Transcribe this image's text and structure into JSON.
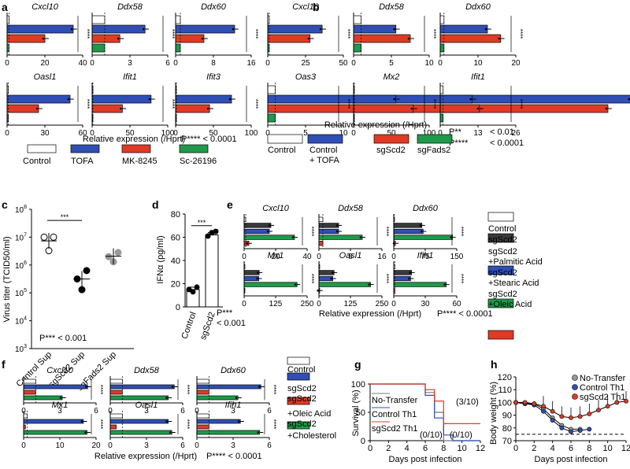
{
  "colors": {
    "control": "#ffffff",
    "tofa": "#2f4fb5",
    "mk": "#e03a25",
    "sc": "#1f9a4a",
    "dark": "#3a3a3a",
    "blue": "#2f4fb5",
    "red": "#e03a25",
    "green": "#1f9a4a",
    "grey": "#777777"
  },
  "panel_labels": {
    "a": "a",
    "b": "b",
    "c": "c",
    "d": "d",
    "e": "e",
    "f": "f",
    "g": "g",
    "h": "h"
  },
  "common": {
    "xlabel": "Relative expression (/Hprt)",
    "sig": "****",
    "sig_double": "**",
    "sig_triple": "***"
  },
  "legends": {
    "a": {
      "items": [
        "Control",
        "TOFA",
        "MK-8245",
        "Sc-26196"
      ],
      "p": "P**** < 0.0001"
    },
    "b": {
      "items": [
        "Control",
        "Control",
        "+ TOFA",
        "sgScd2",
        "sgFads2"
      ],
      "p1": "P**",
      "p1v": "< 0.01",
      "p2": "P****",
      "p2v": "< 0.0001"
    },
    "e": {
      "items": [
        "Control",
        "sgScd2",
        "sgScd2",
        "+Palmitic Acid",
        "sgScd2",
        "+Stearic Acid",
        "sgScd2",
        "+Oleic Acid"
      ],
      "p": "P**** < 0.0001"
    },
    "f": {
      "items": [
        "Control",
        "sgScd2",
        "sgScd2",
        "+Oleic Acid",
        "sgScd2",
        "+Cholesterol"
      ],
      "p": "P**** < 0.0001"
    }
  },
  "chart_data": [
    {
      "panel": "a",
      "type": "bar",
      "orientation": "horizontal",
      "genes": [
        "Cxcl10",
        "Ddx58",
        "Ddx60",
        "Oasl1",
        "Ifit1",
        "Ifit3"
      ],
      "series": [
        "Control",
        "TOFA",
        "MK-8245",
        "Sc-26196"
      ],
      "values": [
        [
          1,
          35,
          20,
          1
        ],
        [
          1,
          4.2,
          2.2,
          1
        ],
        [
          1,
          12.5,
          6,
          1
        ],
        [
          1,
          50,
          25,
          1
        ],
        [
          1,
          78,
          40,
          1
        ],
        [
          1,
          74,
          45,
          1
        ]
      ],
      "ticks": [
        [
          0,
          20,
          40
        ],
        [
          0,
          3,
          6
        ],
        [
          0,
          8,
          16
        ],
        [
          0,
          30,
          60
        ],
        [
          0,
          50,
          100
        ],
        [
          0,
          50,
          100
        ]
      ]
    },
    {
      "panel": "b",
      "type": "bar",
      "orientation": "horizontal",
      "genes": [
        "Cxcl10",
        "Ddx58",
        "Ddx60",
        "Oas3",
        "Mx2",
        "Ifit1"
      ],
      "series": [
        "Control",
        "Control + TOFA",
        "sgScd2",
        "sgFads2"
      ],
      "values": [
        [
          1,
          36,
          28,
          1
        ],
        [
          1,
          5.6,
          7.5,
          1
        ],
        [
          1,
          12.5,
          16,
          1
        ],
        [
          1,
          48,
          45,
          1
        ],
        [
          1,
          56,
          79,
          1
        ],
        [
          1,
          11,
          13.5,
          1
        ]
      ],
      "ticks": [
        [
          0,
          25,
          50
        ],
        [
          0,
          5,
          10
        ],
        [
          0,
          10,
          20
        ],
        [
          0,
          5,
          10
        ],
        [
          0,
          50,
          100
        ],
        [
          0,
          13,
          26
        ]
      ]
    },
    {
      "panel": "c",
      "type": "scatter",
      "ylabel": "Virus titer (TCID50/ml)",
      "categories": [
        "Control Sup",
        "sgScd2 Sup",
        "sgFads2 Sup"
      ],
      "values": [
        [
          7.0,
          6.6,
          7.0
        ],
        [
          5.5,
          5.2,
          5.8
        ],
        [
          6.3,
          6.2,
          6.45
        ]
      ],
      "yticks": [
        "10^3",
        "10^4",
        "10^5",
        "10^6",
        "10^7",
        "10^8"
      ],
      "p": "P***  < 0.001"
    },
    {
      "panel": "d",
      "type": "bar",
      "ylabel": "IFNα (pg/ml)",
      "categories": [
        "Control",
        "sgScd2"
      ],
      "values": [
        15,
        62
      ],
      "points": [
        [
          15,
          13,
          17
        ],
        [
          61,
          64,
          65
        ]
      ],
      "ylim": [
        0,
        80
      ],
      "yticks": [
        0,
        20,
        40,
        60,
        80
      ],
      "p": "P***",
      "pv": "< 0.001"
    },
    {
      "panel": "e",
      "type": "bar",
      "orientation": "horizontal",
      "genes": [
        "Cxcl10",
        "Ddx58",
        "Ddx60",
        "Mx1",
        "Oasl1",
        "Ifih1"
      ],
      "series": [
        "Control",
        "sgScd2",
        "sgScd2 +Palmitic Acid",
        "sgScd2 +Stearic Acid",
        "sgScd2 +Oleic Acid"
      ],
      "values": [
        [
          1,
          17,
          16,
          32,
          3
        ],
        [
          1,
          5,
          5,
          11,
          1
        ],
        [
          1,
          67,
          70,
          140,
          4
        ],
        [
          1,
          60,
          58,
          210,
          1
        ],
        [
          1,
          60,
          55,
          205,
          2
        ],
        [
          1,
          17,
          16,
          50,
          1
        ]
      ],
      "ticks": [
        [
          0,
          20,
          40
        ],
        [
          0,
          8,
          16
        ],
        [
          0,
          75,
          150
        ],
        [
          0,
          125,
          250
        ],
        [
          0,
          125,
          250
        ],
        [
          0,
          30,
          60
        ]
      ]
    },
    {
      "panel": "f",
      "type": "bar",
      "orientation": "horizontal",
      "genes": [
        "Cxcl10",
        "Ddx58",
        "Ddx60",
        "Mx1",
        "Oasl1",
        "Ifih1"
      ],
      "series": [
        "Control",
        "sgScd2",
        "sgScd2 +Oleic Acid",
        "sgScd2 +Cholesterol"
      ],
      "values": [
        [
          1,
          5.3,
          1.0,
          3.2
        ],
        [
          1,
          5.3,
          1,
          4.8
        ],
        [
          1,
          5.3,
          1,
          3.4
        ],
        [
          1,
          16.5,
          0.5,
          17.5
        ],
        [
          1,
          4.8,
          0.5,
          5.1
        ],
        [
          1,
          3.6,
          1,
          5.2
        ]
      ],
      "ticks": [
        [
          0,
          3,
          6
        ],
        [
          0,
          3,
          6
        ],
        [
          0,
          3,
          6
        ],
        [
          0,
          10,
          20
        ],
        [
          0,
          3,
          6
        ],
        [
          0,
          3,
          6
        ]
      ]
    },
    {
      "panel": "g",
      "type": "line",
      "ylabel": "Survival (%)",
      "xlabel": "Days post infection",
      "xticks": [
        0,
        2,
        4,
        6,
        8,
        10,
        12
      ],
      "yticks": [
        0,
        50,
        100
      ],
      "series": [
        {
          "name": "No-Transfer",
          "points": [
            [
              0,
              100
            ],
            [
              6,
              100
            ],
            [
              6,
              85
            ],
            [
              7,
              85
            ],
            [
              7,
              50
            ],
            [
              8,
              50
            ],
            [
              8,
              0
            ],
            [
              12,
              0
            ]
          ]
        },
        {
          "name": "Control Th1",
          "points": [
            [
              0,
              100
            ],
            [
              6,
              100
            ],
            [
              6,
              80
            ],
            [
              7,
              80
            ],
            [
              7,
              40
            ],
            [
              8,
              40
            ],
            [
              8,
              10
            ],
            [
              9,
              10
            ],
            [
              9,
              0
            ],
            [
              12,
              0
            ]
          ]
        },
        {
          "name": "sgScd2 Th1",
          "points": [
            [
              0,
              100
            ],
            [
              6,
              100
            ],
            [
              6,
              90
            ],
            [
              7,
              90
            ],
            [
              7,
              70
            ],
            [
              8,
              70
            ],
            [
              8,
              30
            ],
            [
              12,
              30
            ]
          ]
        }
      ],
      "annotations": [
        "(3/10)",
        "(0/10)",
        "(0/10)"
      ],
      "legend": [
        "No-Transfer",
        "Control Th1",
        "sgScd2 Th1"
      ]
    },
    {
      "panel": "h",
      "type": "line",
      "ylabel": "Body weight (%)",
      "xlabel": "Days post infection",
      "xticks": [
        0,
        2,
        4,
        6,
        8,
        10,
        12
      ],
      "yticks": [
        70,
        80,
        90,
        100,
        110,
        120
      ],
      "series": [
        {
          "name": "No-Transfer",
          "x": [
            0,
            1,
            2,
            3,
            4,
            5,
            6,
            7
          ],
          "y": [
            100,
            99,
            99,
            95,
            88,
            82,
            79,
            79
          ]
        },
        {
          "name": "Control Th1",
          "x": [
            0,
            1,
            2,
            3,
            4,
            5,
            6,
            7,
            8
          ],
          "y": [
            100,
            99,
            98,
            93,
            86,
            80,
            77,
            78,
            79
          ]
        },
        {
          "name": "sgScd2 Th1",
          "x": [
            0,
            1,
            2,
            3,
            4,
            5,
            6,
            7,
            8,
            9,
            10,
            11,
            12
          ],
          "y": [
            100,
            100,
            99,
            97,
            93,
            89,
            88,
            89,
            91,
            94,
            97,
            100,
            101
          ]
        }
      ],
      "legend": [
        "No-Transfer",
        "Control Th1",
        "sgScd2 Th1"
      ],
      "threshold": 75
    }
  ]
}
